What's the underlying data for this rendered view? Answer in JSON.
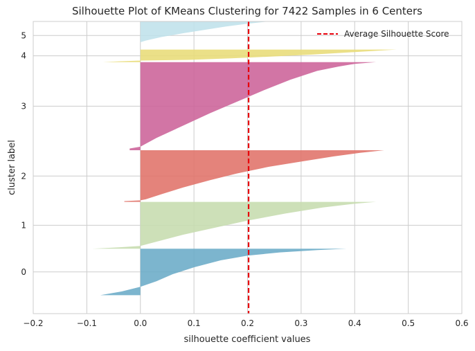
{
  "chart_data": {
    "type": "area",
    "title": "Silhouette Plot of KMeans Clustering for 7422 Samples in 6 Centers",
    "xlabel": "silhouette coefficient values",
    "ylabel": "cluster label",
    "xlim": [
      -0.2,
      0.6
    ],
    "xticks": [
      "−0.2",
      "−0.1",
      "0.0",
      "0.1",
      "0.2",
      "0.3",
      "0.4",
      "0.5",
      "0.6"
    ],
    "ylim": [
      -500,
      7422
    ],
    "grid": true,
    "legend": {
      "position": "top-right",
      "entries": [
        "Average Silhouette Score"
      ]
    },
    "average_silhouette_score": 0.202,
    "clusters": [
      {
        "label": "0",
        "color": "#6aabc7",
        "y_start": 0,
        "y_end": 1260,
        "profile": [
          [
            0,
            0.385
          ],
          [
            0.03,
            0.33
          ],
          [
            0.08,
            0.26
          ],
          [
            0.15,
            0.2
          ],
          [
            0.25,
            0.15
          ],
          [
            0.4,
            0.1
          ],
          [
            0.55,
            0.06
          ],
          [
            0.7,
            0.03
          ],
          [
            0.82,
            0.0
          ],
          [
            0.92,
            -0.035
          ],
          [
            1.0,
            -0.075
          ]
        ]
      },
      {
        "label": "1",
        "color": "#c6dcae",
        "y_start": 1260,
        "y_end": 2530,
        "profile": [
          [
            0,
            0.44
          ],
          [
            0.04,
            0.4
          ],
          [
            0.12,
            0.34
          ],
          [
            0.25,
            0.27
          ],
          [
            0.4,
            0.2
          ],
          [
            0.55,
            0.14
          ],
          [
            0.7,
            0.08
          ],
          [
            0.85,
            0.03
          ],
          [
            0.94,
            0.0
          ],
          [
            0.97,
            -0.04
          ],
          [
            1.0,
            -0.09
          ]
        ]
      },
      {
        "label": "2",
        "color": "#e07269",
        "y_start": 2530,
        "y_end": 3930,
        "profile": [
          [
            0,
            0.455
          ],
          [
            0.05,
            0.41
          ],
          [
            0.12,
            0.36
          ],
          [
            0.22,
            0.3
          ],
          [
            0.32,
            0.24
          ],
          [
            0.45,
            0.18
          ],
          [
            0.58,
            0.13
          ],
          [
            0.72,
            0.08
          ],
          [
            0.85,
            0.04
          ],
          [
            0.95,
            0.01
          ],
          [
            0.97,
            0.0
          ],
          [
            0.985,
            -0.03
          ],
          [
            1.0,
            -0.03
          ]
        ]
      },
      {
        "label": "3",
        "color": "#cc6299",
        "y_start": 3930,
        "y_end": 6320,
        "profile": [
          [
            0,
            0.44
          ],
          [
            0.02,
            0.4
          ],
          [
            0.05,
            0.37
          ],
          [
            0.1,
            0.33
          ],
          [
            0.2,
            0.28
          ],
          [
            0.32,
            0.23
          ],
          [
            0.45,
            0.18
          ],
          [
            0.58,
            0.13
          ],
          [
            0.72,
            0.08
          ],
          [
            0.86,
            0.03
          ],
          [
            0.96,
            0.0
          ],
          [
            0.98,
            -0.02
          ],
          [
            1.0,
            -0.02
          ]
        ]
      },
      {
        "label": "4",
        "color": "#e8dc78",
        "y_start": 6320,
        "y_end": 6660,
        "profile": [
          [
            0,
            0.478
          ],
          [
            0.1,
            0.44
          ],
          [
            0.25,
            0.38
          ],
          [
            0.4,
            0.32
          ],
          [
            0.55,
            0.25
          ],
          [
            0.7,
            0.17
          ],
          [
            0.82,
            0.09
          ],
          [
            0.88,
            0.0
          ],
          [
            0.94,
            -0.04
          ],
          [
            1.0,
            -0.07
          ]
        ]
      },
      {
        "label": "5",
        "color": "#bfe1eb",
        "y_start": 6660,
        "y_end": 7422,
        "profile": [
          [
            0,
            0.24
          ],
          [
            0.08,
            0.2
          ],
          [
            0.18,
            0.16
          ],
          [
            0.3,
            0.12
          ],
          [
            0.42,
            0.08
          ],
          [
            0.55,
            0.04
          ],
          [
            0.68,
            0.01
          ],
          [
            0.74,
            0.0
          ],
          [
            0.85,
            0.0
          ],
          [
            1.0,
            0.0
          ]
        ]
      }
    ]
  }
}
